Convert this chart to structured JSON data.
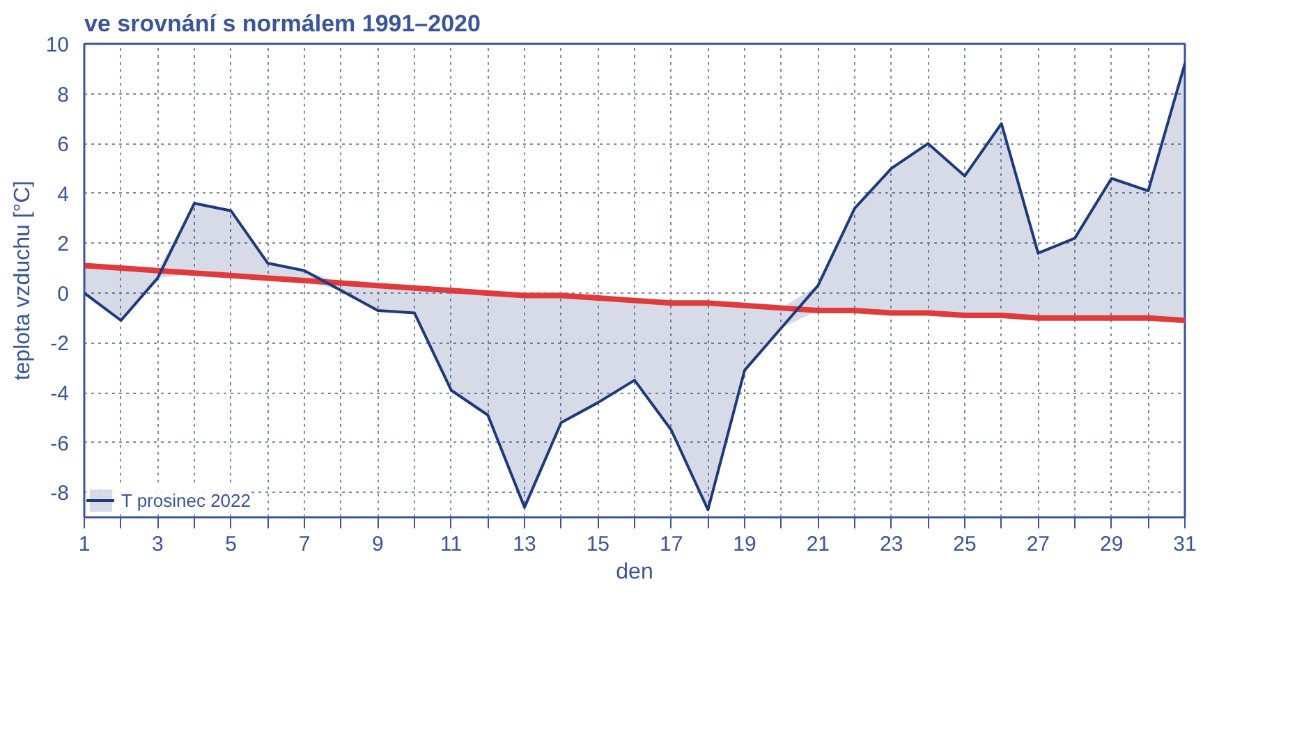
{
  "chart_data": {
    "type": "line",
    "title": "ve srovnání s normálem 1991–2020",
    "xlabel": "den",
    "ylabel": "teplota vzduchu [°C]",
    "x": [
      1,
      2,
      3,
      4,
      5,
      6,
      7,
      8,
      9,
      10,
      11,
      12,
      13,
      14,
      15,
      16,
      17,
      18,
      19,
      20,
      21,
      22,
      23,
      24,
      25,
      26,
      27,
      28,
      29,
      30,
      31
    ],
    "series": [
      {
        "name": "T prosinec 2022",
        "color": "#1f3a7a",
        "values": [
          0.0,
          -1.1,
          0.6,
          3.6,
          3.3,
          1.2,
          0.9,
          0.1,
          -0.7,
          -0.8,
          -3.9,
          -4.9,
          -8.6,
          -5.2,
          -4.4,
          -3.5,
          -5.5,
          -8.7,
          -3.1,
          -1.4,
          0.3,
          3.4,
          5.0,
          6.0,
          4.7,
          6.8,
          1.6,
          2.2,
          4.6,
          4.1,
          9.2
        ],
        "lower": [
          0.0,
          -1.1,
          0.6,
          0.8,
          0.7,
          0.6,
          0.5,
          0.1,
          -0.7,
          -0.8,
          -3.9,
          -4.9,
          -8.6,
          -5.2,
          -4.4,
          -3.5,
          -5.5,
          -8.7,
          -3.1,
          -1.4,
          -0.7,
          -0.7,
          -0.8,
          -0.8,
          -0.9,
          -0.9,
          -1.0,
          -1.0,
          -1.0,
          -1.0,
          -1.1
        ],
        "upper": [
          1.1,
          1.0,
          0.9,
          3.6,
          3.3,
          1.2,
          0.9,
          0.4,
          0.3,
          0.2,
          0.1,
          0.0,
          -0.1,
          -0.1,
          -0.2,
          -0.3,
          -0.4,
          -0.4,
          -0.5,
          -0.6,
          0.3,
          3.4,
          5.0,
          6.0,
          4.7,
          6.8,
          1.6,
          2.2,
          4.6,
          4.1,
          9.2
        ]
      },
      {
        "type": "line",
        "color": "#e03a3a",
        "values": [
          1.1,
          1.0,
          0.9,
          0.8,
          0.7,
          0.6,
          0.5,
          0.4,
          0.3,
          0.2,
          0.1,
          0.0,
          -0.1,
          -0.1,
          -0.2,
          -0.3,
          -0.4,
          -0.4,
          -0.5,
          -0.6,
          -0.7,
          -0.7,
          -0.8,
          -0.8,
          -0.9,
          -0.9,
          -1.0,
          -1.0,
          -1.0,
          -1.0,
          -1.1
        ]
      }
    ],
    "xlim": [
      1,
      31
    ],
    "ylim": [
      -9,
      10
    ],
    "xticks": [
      1,
      {
        "value": 2,
        "label": null
      },
      3,
      {
        "value": 4,
        "label": null
      },
      5,
      {
        "value": 6,
        "label": null
      },
      7,
      {
        "value": 8,
        "label": null
      },
      9,
      {
        "value": 10,
        "label": null
      },
      11,
      {
        "value": 12,
        "label": null
      },
      13,
      {
        "value": 14,
        "label": null
      },
      15,
      {
        "value": 16,
        "label": null
      },
      17,
      {
        "value": 18,
        "label": null
      },
      19,
      {
        "value": 20,
        "label": null
      },
      21,
      {
        "value": 22,
        "label": null
      },
      23,
      {
        "value": 24,
        "label": null
      },
      25,
      {
        "value": 26,
        "label": null
      },
      27,
      {
        "value": 28,
        "label": null
      },
      29,
      {
        "value": 30,
        "label": null
      },
      31
    ],
    "yticks": [
      -8,
      -6,
      -4,
      -2,
      0,
      2,
      4,
      6,
      8,
      10
    ],
    "grid": true,
    "legend": "bottom",
    "line_style": "solid",
    "marker": "none"
  }
}
